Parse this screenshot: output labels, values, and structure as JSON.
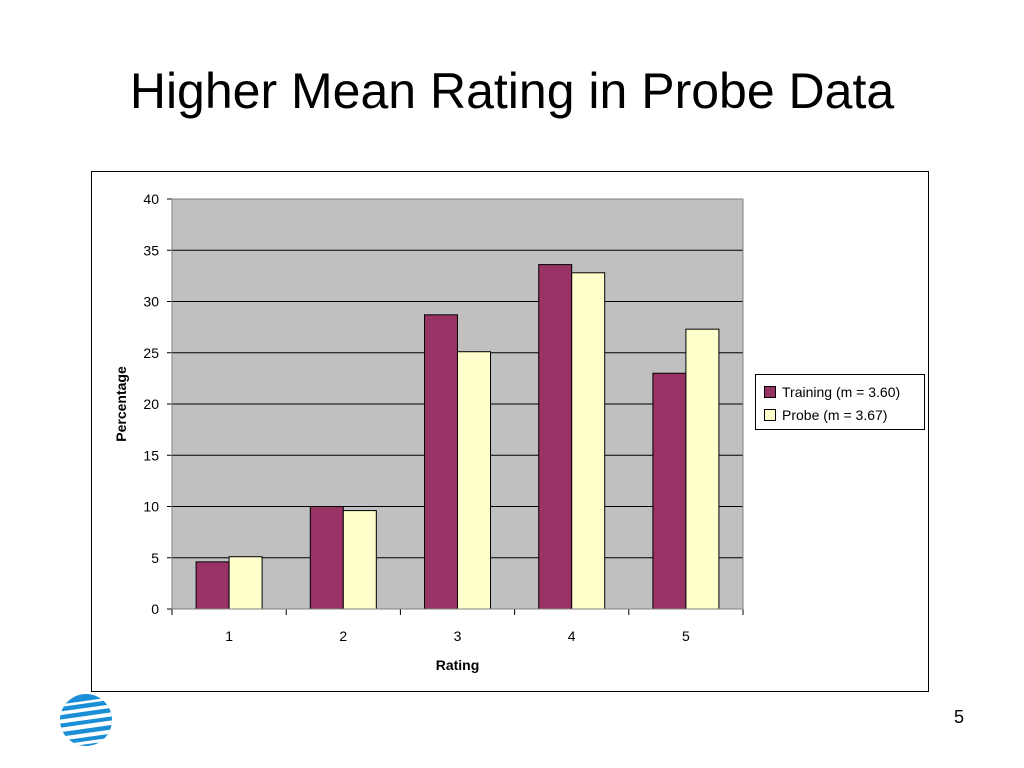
{
  "slide": {
    "title": "Higher Mean Rating in Probe Data",
    "page_number": "5"
  },
  "logo": {
    "icon": "globe-logo-icon"
  },
  "chart_data": {
    "type": "bar",
    "categories": [
      "1",
      "2",
      "3",
      "4",
      "5"
    ],
    "series": [
      {
        "name": "Training (m = 3.60)",
        "values": [
          4.6,
          10.0,
          28.7,
          33.6,
          23.0
        ],
        "color": "#993366"
      },
      {
        "name": "Probe (m = 3.67)",
        "values": [
          5.1,
          9.6,
          25.1,
          32.8,
          27.3
        ],
        "color": "#FFFFCC"
      }
    ],
    "title": "",
    "xlabel": "Rating",
    "ylabel": "Percentage",
    "ylim": [
      0,
      40
    ],
    "yticks": [
      0,
      5,
      10,
      15,
      20,
      25,
      30,
      35,
      40
    ],
    "grid": true,
    "plot_background": "#C0C0C0",
    "legend_position": "right"
  }
}
